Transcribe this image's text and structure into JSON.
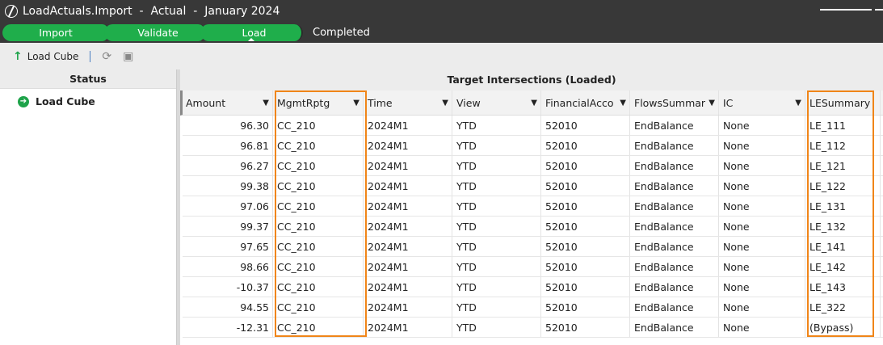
{
  "window": {
    "title": "LoadActuals.Import  -  Actual  -  January 2024"
  },
  "steps": [
    {
      "label": "Import"
    },
    {
      "label": "Validate"
    },
    {
      "label": "Load"
    }
  ],
  "workflow_status": "Completed",
  "toolbar": {
    "load_cube_label": "Load Cube"
  },
  "status_panel": {
    "header": "Status",
    "item": "Load Cube"
  },
  "grid": {
    "title": "Target Intersections (Loaded)",
    "columns": [
      "Amount",
      "MgmtRptg",
      "Time",
      "View",
      "FinancialAcco",
      "FlowsSummar",
      "IC",
      "LESummary"
    ],
    "rows": [
      [
        "96.30",
        "CC_210",
        "2024M1",
        "YTD",
        "52010",
        "EndBalance",
        "None",
        "LE_111"
      ],
      [
        "96.81",
        "CC_210",
        "2024M1",
        "YTD",
        "52010",
        "EndBalance",
        "None",
        "LE_112"
      ],
      [
        "96.27",
        "CC_210",
        "2024M1",
        "YTD",
        "52010",
        "EndBalance",
        "None",
        "LE_121"
      ],
      [
        "99.38",
        "CC_210",
        "2024M1",
        "YTD",
        "52010",
        "EndBalance",
        "None",
        "LE_122"
      ],
      [
        "97.06",
        "CC_210",
        "2024M1",
        "YTD",
        "52010",
        "EndBalance",
        "None",
        "LE_131"
      ],
      [
        "99.37",
        "CC_210",
        "2024M1",
        "YTD",
        "52010",
        "EndBalance",
        "None",
        "LE_132"
      ],
      [
        "97.65",
        "CC_210",
        "2024M1",
        "YTD",
        "52010",
        "EndBalance",
        "None",
        "LE_141"
      ],
      [
        "98.66",
        "CC_210",
        "2024M1",
        "YTD",
        "52010",
        "EndBalance",
        "None",
        "LE_142"
      ],
      [
        "-10.37",
        "CC_210",
        "2024M1",
        "YTD",
        "52010",
        "EndBalance",
        "None",
        "LE_143"
      ],
      [
        "94.55",
        "CC_210",
        "2024M1",
        "YTD",
        "52010",
        "EndBalance",
        "None",
        "LE_322"
      ],
      [
        "-12.31",
        "CC_210",
        "2024M1",
        "YTD",
        "52010",
        "EndBalance",
        "None",
        "(Bypass)"
      ]
    ],
    "highlighted_columns": [
      "MgmtRptg",
      "LESummary"
    ]
  },
  "colors": {
    "step_green": "#1fae4b",
    "highlight": "#f08518",
    "titlebar": "#383838"
  }
}
